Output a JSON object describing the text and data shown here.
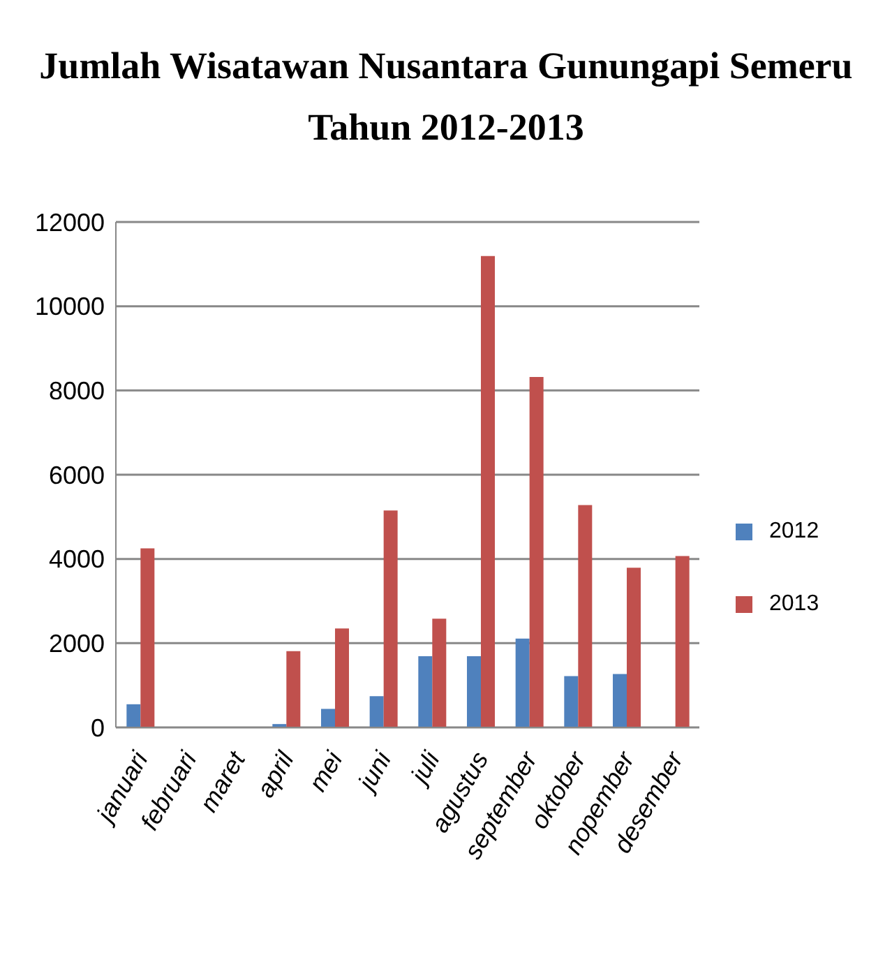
{
  "chart_data": {
    "type": "bar",
    "title": "Jumlah Wisatawan Nusantara Gunungapi Semeru\nTahun 2012-2013",
    "categories": [
      "januari",
      "februari",
      "maret",
      "april",
      "mei",
      "juni",
      "juli",
      "agustus",
      "september",
      "oktober",
      "nopember",
      "desember"
    ],
    "series": [
      {
        "name": "2012",
        "color": "#4f81bd",
        "values": [
          550,
          null,
          null,
          80,
          440,
          740,
          1690,
          1690,
          2110,
          1220,
          1270,
          null
        ]
      },
      {
        "name": "2013",
        "color": "#c0504d",
        "values": [
          4250,
          null,
          null,
          1810,
          2350,
          5150,
          2580,
          11190,
          8320,
          5280,
          3790,
          4070
        ]
      }
    ],
    "ylim": [
      0,
      12000
    ],
    "yticks": [
      0,
      2000,
      4000,
      6000,
      8000,
      10000,
      12000
    ],
    "grid": "y",
    "legend": "right"
  }
}
